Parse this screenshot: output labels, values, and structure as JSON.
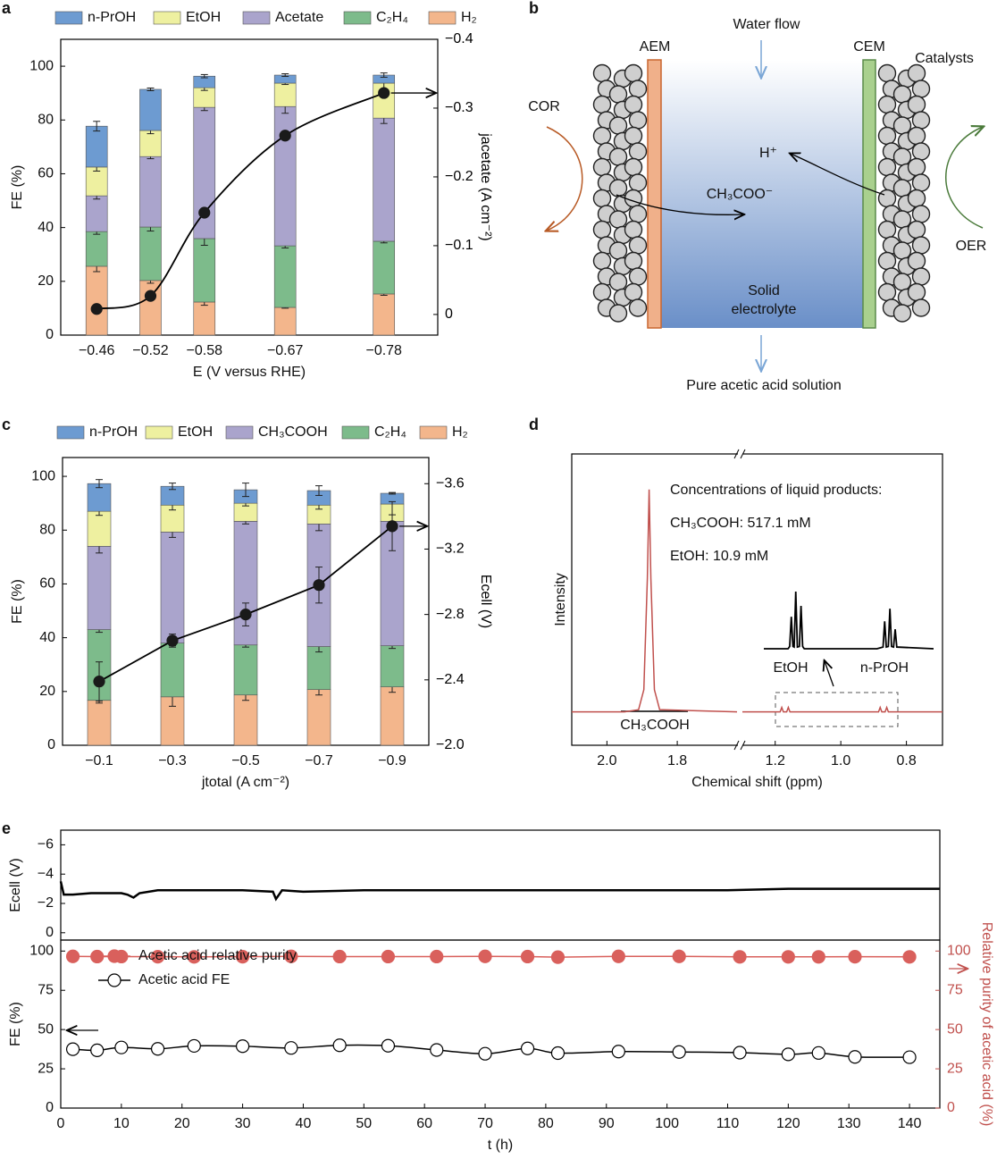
{
  "panel_labels": [
    "a",
    "b",
    "c",
    "d",
    "e"
  ],
  "chart_data": [
    {
      "type": "bar",
      "stacked": true,
      "x": [
        -0.46,
        -0.52,
        -0.58,
        -0.67,
        -0.78
      ],
      "xlim": [
        -0.42,
        -0.84
      ],
      "xticks": [
        {
          "value": -0.46,
          "label": "−0.46"
        },
        {
          "value": -0.52,
          "label": "−0.52"
        },
        {
          "value": -0.58,
          "label": "−0.58"
        },
        {
          "value": -0.67,
          "label": "−0.67"
        },
        {
          "value": -0.78,
          "label": "−0.78"
        }
      ],
      "xlabel": "E (V versus RHE)",
      "ylabel": "FE (%)",
      "y2label": "jacetate (A cm⁻²)",
      "ylim": [
        0,
        110
      ],
      "yticks": [
        0,
        20,
        40,
        60,
        80,
        100
      ],
      "y2lim": [
        0.03,
        -0.4
      ],
      "y2ticks": [
        0,
        {
          "value": -0.1,
          "label": "−0.1"
        },
        {
          "value": -0.2,
          "label": "−0.2"
        },
        {
          "value": -0.3,
          "label": "−0.3"
        },
        {
          "value": -0.4,
          "label": "−0.4"
        }
      ],
      "series": [
        {
          "name": "n-PrOH",
          "color": "#6d9bd1",
          "values": [
            15.2,
            15.3,
            4.3,
            3.0,
            3.0
          ],
          "errors": [
            1.8,
            0.5,
            0.6,
            0.5,
            0.8
          ]
        },
        {
          "name": "EtOH",
          "color": "#eef0a0",
          "values": [
            10.7,
            9.7,
            7.3,
            8.7,
            13.0
          ],
          "errors": [
            1.5,
            1.2,
            1.0,
            0.5,
            2.5
          ]
        },
        {
          "name": "Acetate",
          "color": "#aaa4cc",
          "values": [
            13.3,
            26.2,
            48.8,
            51.8,
            45.8
          ],
          "errors": [
            1.2,
            0.8,
            1.2,
            2.5,
            2.0
          ]
        },
        {
          "name": "C₂H₄",
          "color": "#7dbb8b",
          "values": [
            12.9,
            19.9,
            23.6,
            22.9,
            19.6
          ],
          "errors": [
            1.0,
            1.5,
            2.5,
            0.8,
            0.6
          ]
        },
        {
          "name": "H₂",
          "color": "#f3b68c",
          "values": [
            25.6,
            20.3,
            12.3,
            10.3,
            15.3
          ],
          "errors": [
            2.0,
            1.0,
            1.2,
            0.3,
            0.5
          ]
        },
        {
          "type": "line",
          "axis": "y2",
          "smooth": true,
          "color": "#000000",
          "values": [
            -0.008,
            -0.027,
            -0.148,
            -0.26,
            -0.322
          ]
        }
      ]
    },
    {
      "type": "bar",
      "stacked": true,
      "x": [
        -0.1,
        -0.3,
        -0.5,
        -0.7,
        -0.9
      ],
      "xlim": [
        0,
        -1.0
      ],
      "xticks": [
        {
          "value": -0.1,
          "label": "−0.1"
        },
        {
          "value": -0.3,
          "label": "−0.3"
        },
        {
          "value": -0.5,
          "label": "−0.5"
        },
        {
          "value": -0.7,
          "label": "−0.7"
        },
        {
          "value": -0.9,
          "label": "−0.9"
        }
      ],
      "xlabel": "jtotal (A cm⁻²)",
      "ylabel": "FE (%)",
      "y2label": "Ecell (V)",
      "ylim": [
        0,
        107
      ],
      "yticks": [
        0,
        20,
        40,
        60,
        80,
        100
      ],
      "y2lim": [
        -2.0,
        -3.76
      ],
      "y2ticks": [
        {
          "value": -2.0,
          "label": "−2.0"
        },
        {
          "value": -2.4,
          "label": "−2.4"
        },
        {
          "value": -2.8,
          "label": "−2.8"
        },
        {
          "value": -3.2,
          "label": "−3.2"
        },
        {
          "value": -3.6,
          "label": "−3.6"
        }
      ],
      "series": [
        {
          "name": "n-PrOH",
          "color": "#6d9bd1",
          "values": [
            10.3,
            7,
            5,
            5.4,
            4
          ],
          "errors": [
            1.5,
            1.2,
            2.5,
            1.8,
            0.3
          ]
        },
        {
          "name": "EtOH",
          "color": "#eef0a0",
          "values": [
            13,
            10,
            6.7,
            7,
            6.4
          ],
          "errors": [
            1.5,
            1.8,
            1.0,
            1.5,
            4.0
          ]
        },
        {
          "name": "CH₃COOH",
          "color": "#aaa4cc",
          "values": [
            31,
            41.3,
            46,
            45.6,
            46.3
          ],
          "errors": [
            2.5,
            2.0,
            1.0,
            2.5,
            1.0
          ]
        },
        {
          "name": "C₂H₄",
          "color": "#7dbb8b",
          "values": [
            26.3,
            20,
            18.6,
            16,
            15.3
          ],
          "errors": [
            1.0,
            1.0,
            0.8,
            2.0,
            1.0
          ]
        },
        {
          "name": "H₂",
          "color": "#f3b68c",
          "values": [
            16.7,
            18,
            18.7,
            20.7,
            21.7
          ],
          "errors": [
            1.0,
            3.5,
            2.0,
            2.0,
            2.0
          ]
        },
        {
          "type": "line",
          "axis": "y2",
          "color": "#000000",
          "values": [
            -2.39,
            -2.64,
            -2.8,
            -2.98,
            -3.34
          ],
          "errors": [
            0.12,
            0.04,
            0.07,
            0.11,
            0.15
          ]
        }
      ]
    },
    {
      "type": "line",
      "xlim": [
        2.1,
        0.69
      ],
      "xbreak": [
        1.63,
        1.3
      ],
      "xticks": [
        {
          "value": 2.0,
          "label": "2.0"
        },
        {
          "value": 1.8,
          "label": "1.8"
        },
        {
          "value": 1.2,
          "label": "1.2"
        },
        {
          "value": 1.0,
          "label": "1.0"
        },
        {
          "value": 0.8,
          "label": "0.8"
        }
      ],
      "ylim": [
        -15,
        116
      ],
      "xlabel": "Chemical shift (ppm)",
      "ylabel": "Intensity",
      "series": [
        {
          "color": "#c0504d",
          "x": [
            2.1,
            1.95,
            1.91,
            1.895,
            1.885,
            1.88,
            1.875,
            1.865,
            1.85,
            1.63,
            1.5,
            1.3,
            1.185,
            1.18,
            1.175,
            1.165,
            1.16,
            1.155,
            0.885,
            0.88,
            0.875,
            0.865,
            0.86,
            0.855,
            0.69
          ],
          "values": [
            0,
            0,
            1,
            10,
            60,
            100,
            60,
            10,
            1,
            0,
            null,
            0,
            0,
            2,
            0,
            0,
            2,
            0,
            0,
            2,
            0,
            0,
            2,
            0,
            0
          ]
        }
      ],
      "annotations": [
        "Concentrations of liquid products:",
        "CH₃COOH: 517.1 mM",
        "EtOH: 10.9 mM"
      ],
      "peak_label": "CH₃COOH",
      "inset": {
        "color": "#000000",
        "xlim": [
          1.22,
          0.8
        ],
        "ylim": [
          0,
          100
        ],
        "x": [
          1.22,
          1.16,
          1.156,
          1.152,
          1.148,
          1.145,
          1.141,
          1.137,
          1.132,
          1.128,
          1.124,
          1.12,
          0.94,
          0.925,
          0.921,
          0.917,
          0.912,
          0.908,
          0.904,
          0.899,
          0.895,
          0.891,
          0.8
        ],
        "values": [
          0,
          0,
          4,
          56,
          4,
          3,
          100,
          3,
          4,
          75,
          4,
          0,
          0,
          3,
          48,
          3,
          4,
          70,
          4,
          3,
          34,
          3,
          0
        ],
        "labels": [
          "EtOH",
          "n-PrOH"
        ]
      }
    },
    {
      "type": "line",
      "xlim": [
        0,
        145
      ],
      "ylim": [
        0.5,
        -7
      ],
      "yticks": [
        0,
        {
          "value": -2,
          "label": "−2"
        },
        {
          "value": -4,
          "label": "−4"
        },
        {
          "value": -6,
          "label": "−6"
        }
      ],
      "ylabel": "Ecell (V)",
      "series": [
        {
          "color": "#000000",
          "x": [
            0,
            0.5,
            2,
            5,
            10,
            11,
            12,
            13,
            16,
            20,
            25,
            30,
            35,
            35.5,
            36.5,
            40,
            50,
            60,
            70,
            80,
            90,
            100,
            110,
            120,
            130,
            140,
            145
          ],
          "values": [
            -3.5,
            -2.6,
            -2.6,
            -2.7,
            -2.7,
            -2.6,
            -2.4,
            -2.7,
            -2.9,
            -2.9,
            -2.9,
            -2.9,
            -2.8,
            -2.3,
            -2.9,
            -2.8,
            -2.9,
            -2.9,
            -2.9,
            -2.9,
            -2.9,
            -2.9,
            -2.9,
            -3.0,
            -3.0,
            -3.0,
            -3.0
          ]
        }
      ]
    },
    {
      "type": "line",
      "markers": true,
      "xlim": [
        0,
        145
      ],
      "xticks": [
        0,
        10,
        20,
        30,
        40,
        50,
        60,
        70,
        80,
        90,
        100,
        110,
        120,
        130,
        140
      ],
      "xlabel": "t (h)",
      "ylim": [
        0,
        107
      ],
      "yticks": [
        0,
        25,
        50,
        75,
        100
      ],
      "ylabel": "FE (%)",
      "y2lim": [
        0,
        107
      ],
      "y2ticks": [
        0,
        25,
        50,
        75,
        100
      ],
      "y2label": "Relative purity of acetic acid (%)",
      "y2color": "#c0504d",
      "legend": "upper left",
      "series": [
        {
          "name": "Acetic acid relative purity",
          "color": "#d9605c",
          "marker_fill": "#d9605c",
          "axis": "y2",
          "x": [
            2,
            6,
            10,
            16,
            22,
            30,
            38,
            46,
            54,
            62,
            70,
            77,
            82,
            92,
            102,
            112,
            120,
            125,
            131,
            140
          ],
          "values": [
            96.6,
            96.5,
            96.5,
            96.4,
            96.3,
            96.4,
            96.6,
            96.5,
            96.5,
            96.5,
            96.6,
            96.5,
            96.1,
            96.6,
            96.6,
            96.3,
            96.3,
            96.3,
            96.4,
            96.3
          ]
        },
        {
          "name": "Acetic acid FE",
          "color": "#000000",
          "marker_fill": "#ffffff",
          "smooth": true,
          "x": [
            2,
            6,
            10,
            16,
            22,
            30,
            38,
            46,
            54,
            62,
            70,
            77,
            82,
            92,
            102,
            112,
            120,
            125,
            131,
            140
          ],
          "values": [
            37.5,
            36.8,
            38.6,
            37.7,
            39.6,
            39.4,
            38.3,
            40,
            39.7,
            37,
            34.6,
            38,
            35,
            36,
            35.7,
            35.3,
            34.2,
            35.1,
            32.6,
            32.4
          ]
        }
      ]
    }
  ],
  "diagram": {
    "water_flow": "Water flow",
    "aem": "AEM",
    "cem": "CEM",
    "catalysts": "Catalysts",
    "cor": "COR",
    "oer": "OER",
    "proton": "H⁺",
    "acetate_ion": "CH₃COO⁻",
    "electrolyte": [
      "Solid",
      "electrolyte"
    ],
    "outlet": "Pure acetic acid solution"
  }
}
